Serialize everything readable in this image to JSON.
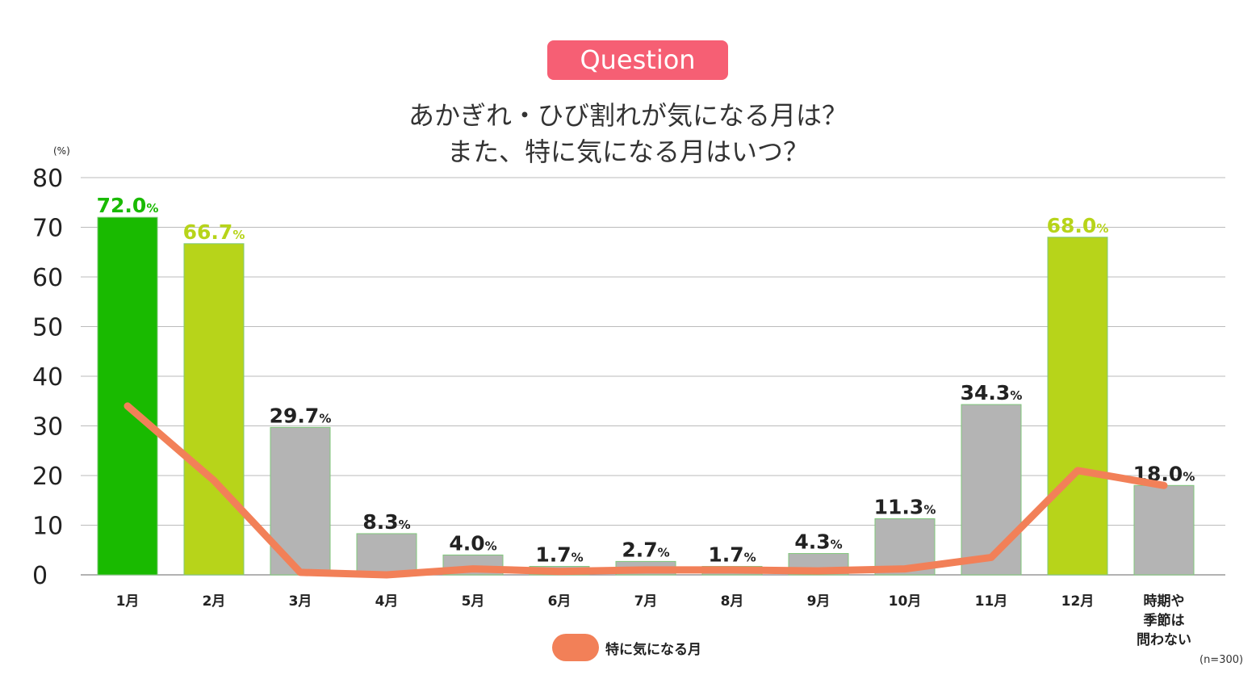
{
  "badge": "Question",
  "title_line1": "あかぎれ・ひび割れが気になる月は？",
  "title_line2": "また、特に気になる月はいつ？",
  "unit_label": "(%)",
  "sample_size": "(n=300)",
  "colors": {
    "highlight_1": "#19ba00",
    "highlight_2": "#b7d41a",
    "other": "#b4b4b4",
    "line": "#f28058",
    "badge": "#f65f74",
    "grid": "#bbbbbb"
  },
  "chart_data": {
    "type": "bar",
    "title": "あかぎれ・ひび割れが気になる月は？ また、特に気になる月はいつ？",
    "xlabel": "",
    "ylabel": "(%)",
    "ylim": [
      0,
      80
    ],
    "yticks": [
      "0",
      "10",
      "20",
      "30",
      "40",
      "50",
      "60",
      "70",
      "80"
    ],
    "grid": true,
    "categories": [
      [
        "1月"
      ],
      [
        "2月"
      ],
      [
        "3月"
      ],
      [
        "4月"
      ],
      [
        "5月"
      ],
      [
        "6月"
      ],
      [
        "7月"
      ],
      [
        "8月"
      ],
      [
        "9月"
      ],
      [
        "10月"
      ],
      [
        "11月"
      ],
      [
        "12月"
      ],
      [
        "時期や",
        "季節は",
        "問わない"
      ]
    ],
    "series": [
      {
        "name": "",
        "type": "bar",
        "values": [
          72.0,
          66.7,
          29.7,
          8.3,
          4.0,
          1.7,
          2.7,
          1.7,
          4.3,
          11.3,
          34.3,
          68.0,
          18.0
        ],
        "labels": [
          "72.0",
          "66.7",
          "29.7",
          "8.3",
          "4.0",
          "1.7",
          "2.7",
          "1.7",
          "4.3",
          "11.3",
          "34.3",
          "68.0",
          "18.0"
        ],
        "label_suffix": "%",
        "bar_colors": [
          "#19ba00",
          "#b7d41a",
          "#b4b4b4",
          "#b4b4b4",
          "#b4b4b4",
          "#b4b4b4",
          "#b4b4b4",
          "#b4b4b4",
          "#b4b4b4",
          "#b4b4b4",
          "#b4b4b4",
          "#b7d41a",
          "#b4b4b4"
        ],
        "label_colors": [
          "#19ba00",
          "#b7d41a",
          "#222222",
          "#222222",
          "#222222",
          "#222222",
          "#222222",
          "#222222",
          "#222222",
          "#222222",
          "#222222",
          "#b7d41a",
          "#222222"
        ]
      },
      {
        "name": "特に気になる月",
        "type": "line",
        "values": [
          34.0,
          19.0,
          0.5,
          0.0,
          1.2,
          0.7,
          1.0,
          1.0,
          0.8,
          1.2,
          3.5,
          21.0,
          18.0
        ]
      }
    ],
    "legend": "bottom-center"
  }
}
